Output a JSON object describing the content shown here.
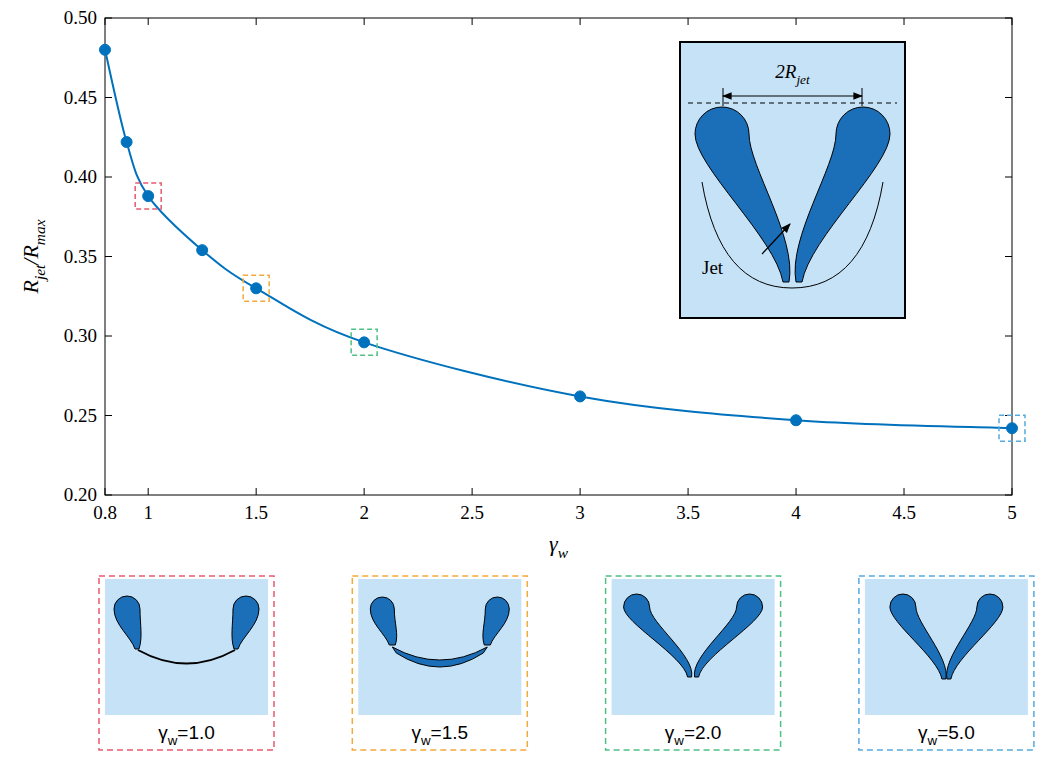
{
  "chart_data": {
    "type": "line",
    "x": [
      0.8,
      0.9,
      1.0,
      1.25,
      1.5,
      2.0,
      3.0,
      4.0,
      5.0
    ],
    "series": [
      {
        "color": "#0072bd",
        "marker": "circle",
        "line_style": "solid",
        "values": [
          0.48,
          0.422,
          0.388,
          0.354,
          0.33,
          0.296,
          0.262,
          0.247,
          0.242
        ]
      }
    ],
    "xlabel": [
      "γ",
      "w"
    ],
    "ylabel": [
      "R",
      "jet",
      "/R",
      "max"
    ],
    "xlim": [
      0.8,
      5
    ],
    "xticks": [
      0.8,
      1,
      1.5,
      2,
      2.5,
      3,
      3.5,
      4,
      4.5,
      5
    ],
    "ylim": [
      0.2,
      0.5
    ],
    "yticks": [
      {
        "value": 0.2,
        "label": "0.20"
      },
      {
        "value": 0.25,
        "label": "0.25"
      },
      {
        "value": 0.3,
        "label": "0.30"
      },
      {
        "value": 0.35,
        "label": "0.35"
      },
      {
        "value": 0.4,
        "label": "0.40"
      },
      {
        "value": 0.45,
        "label": "0.45"
      },
      {
        "value": 0.5,
        "label": "0.50"
      }
    ],
    "grid": false,
    "inset": {
      "label": [
        "2R",
        "jet"
      ],
      "annotation": "Jet"
    },
    "panels": [
      {
        "x": 1.0,
        "color": "#e65a6f",
        "label": [
          "γ",
          "w",
          "=1.0"
        ]
      },
      {
        "x": 1.5,
        "color": "#f3a93b",
        "label": [
          "γ",
          "w",
          "=1.5"
        ]
      },
      {
        "x": 2.0,
        "color": "#4fbf85",
        "label": [
          "γ",
          "w",
          "=2.0"
        ]
      },
      {
        "x": 5.0,
        "color": "#56a9e0",
        "label": [
          "γ",
          "w",
          "=5.0"
        ]
      }
    ]
  }
}
